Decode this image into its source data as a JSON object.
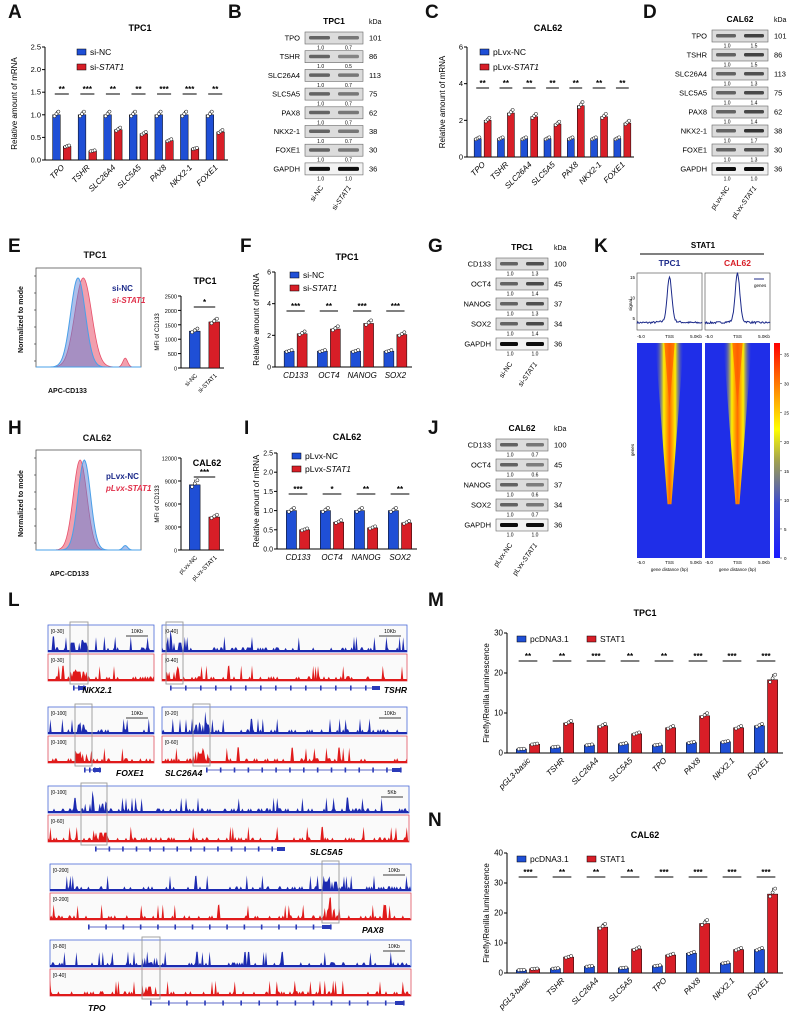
{
  "panels": {
    "A": "A",
    "B": "B",
    "C": "C",
    "D": "D",
    "E": "E",
    "F": "F",
    "G": "G",
    "H": "H",
    "I": "I",
    "J": "J",
    "K": "K",
    "L": "L",
    "M": "M",
    "N": "N"
  },
  "colors": {
    "blue": "#1f4fd6",
    "red": "#d81e27",
    "navy": "#1c2a8a"
  },
  "blots": {
    "B": {
      "title": "TPC1",
      "kda_label": "kDa",
      "lanes": [
        "si-NC",
        "si-STAT1"
      ],
      "rows": [
        {
          "name": "TPO",
          "kda": "101",
          "q": [
            "1.0",
            "0.7"
          ]
        },
        {
          "name": "TSHR",
          "kda": "86",
          "q": [
            "1.0",
            "0.5"
          ]
        },
        {
          "name": "SLC26A4",
          "kda": "113",
          "q": [
            "1.0",
            "0.7"
          ]
        },
        {
          "name": "SLC5A5",
          "kda": "75",
          "q": [
            "1.0",
            "0.7"
          ]
        },
        {
          "name": "PAX8",
          "kda": "62",
          "q": [
            "1.0",
            "0.7"
          ]
        },
        {
          "name": "NKX2-1",
          "kda": "38",
          "q": [
            "1.0",
            "0.7"
          ]
        },
        {
          "name": "FOXE1",
          "kda": "30",
          "q": [
            "1.0",
            "0.7"
          ]
        },
        {
          "name": "GAPDH",
          "kda": "36",
          "q": [
            "1.0",
            "1.0"
          ]
        }
      ]
    },
    "D": {
      "title": "CAL62",
      "kda_label": "kDa",
      "lanes": [
        "pLvx-NC",
        "pLvx-STAT1"
      ],
      "rows": [
        {
          "name": "TPO",
          "kda": "101",
          "q": [
            "1.0",
            "1.5"
          ]
        },
        {
          "name": "TSHR",
          "kda": "86",
          "q": [
            "1.0",
            "1.5"
          ]
        },
        {
          "name": "SLC26A4",
          "kda": "113",
          "q": [
            "1.0",
            "1.3"
          ]
        },
        {
          "name": "SLC5A5",
          "kda": "75",
          "q": [
            "1.0",
            "1.4"
          ]
        },
        {
          "name": "PAX8",
          "kda": "62",
          "q": [
            "1.0",
            "1.4"
          ]
        },
        {
          "name": "NKX2-1",
          "kda": "38",
          "q": [
            "1.0",
            "1.7"
          ]
        },
        {
          "name": "FOXE1",
          "kda": "30",
          "q": [
            "1.0",
            "1.3"
          ]
        },
        {
          "name": "GAPDH",
          "kda": "36",
          "q": [
            "1.0",
            "1.0"
          ]
        }
      ]
    },
    "G": {
      "title": "TPC1",
      "kda_label": "kDa",
      "lanes": [
        "si-NC",
        "si-STAT1"
      ],
      "rows": [
        {
          "name": "CD133",
          "kda": "100",
          "q": [
            "1.0",
            "1.3"
          ]
        },
        {
          "name": "OCT4",
          "kda": "45",
          "q": [
            "1.0",
            "1.4"
          ]
        },
        {
          "name": "NANOG",
          "kda": "37",
          "q": [
            "1.0",
            "1.3"
          ]
        },
        {
          "name": "SOX2",
          "kda": "34",
          "q": [
            "1.0",
            "1.4"
          ]
        },
        {
          "name": "GAPDH",
          "kda": "36",
          "q": [
            "1.0",
            "1.0"
          ]
        }
      ]
    },
    "J": {
      "title": "CAL62",
      "kda_label": "kDa",
      "lanes": [
        "pLvx-NC",
        "pLvx-STAT1"
      ],
      "rows": [
        {
          "name": "CD133",
          "kda": "100",
          "q": [
            "1.0",
            "0.7"
          ]
        },
        {
          "name": "OCT4",
          "kda": "45",
          "q": [
            "1.0",
            "0.6"
          ]
        },
        {
          "name": "NANOG",
          "kda": "37",
          "q": [
            "1.0",
            "0.6"
          ]
        },
        {
          "name": "SOX2",
          "kda": "34",
          "q": [
            "1.0",
            "0.7"
          ]
        },
        {
          "name": "GAPDH",
          "kda": "36",
          "q": [
            "1.0",
            "1.0"
          ]
        }
      ]
    }
  },
  "flow": {
    "E": {
      "title": "TPC1",
      "ylabel": "Normalized to mode",
      "xlabel": "APC-CD133",
      "legend": [
        "si-NC",
        "si-STAT1"
      ]
    },
    "H": {
      "title": "CAL62",
      "ylabel": "Normalized to mode",
      "xlabel": "APC-CD133",
      "legend": [
        "pLvx-NC",
        "pLvx-STAT1"
      ]
    }
  },
  "chart_data": [
    {
      "id": "A",
      "type": "bar",
      "title": "TPC1",
      "ylabel": "Relative amount of mRNA",
      "xlabel": "",
      "ylim": [
        0,
        2.5
      ],
      "yticks": [
        "0.0",
        "0.5",
        "1.0",
        "1.5",
        "2.0",
        "2.5"
      ],
      "categories": [
        "TPO",
        "TSHR",
        "SLC26A4",
        "SLC5A5",
        "PAX8",
        "NKX2-1",
        "FOXE1"
      ],
      "series": [
        {
          "name": "si-NC",
          "values": [
            1.0,
            1.0,
            1.0,
            1.0,
            1.0,
            1.0,
            1.0
          ]
        },
        {
          "name": "si-STAT1",
          "values": [
            0.3,
            0.2,
            0.67,
            0.58,
            0.43,
            0.25,
            0.62
          ]
        }
      ],
      "significance": [
        "**",
        "***",
        "**",
        "**",
        "***",
        "***",
        "**"
      ],
      "legend": "top-left"
    },
    {
      "id": "C",
      "type": "bar",
      "title": "CAL62",
      "ylabel": "Relative amount of mRNA",
      "xlabel": "",
      "ylim": [
        0,
        6
      ],
      "yticks": [
        "0",
        "2",
        "4",
        "6"
      ],
      "categories": [
        "TPO",
        "TSHR",
        "SLC26A4",
        "SLC5A5",
        "PAX8",
        "NKX2-1",
        "FOXE1"
      ],
      "series": [
        {
          "name": "pLvx-NC",
          "values": [
            1.0,
            1.0,
            1.0,
            1.0,
            1.0,
            1.0,
            1.0
          ]
        },
        {
          "name": "pLvx-STAT1",
          "values": [
            2.0,
            2.4,
            2.2,
            1.8,
            2.8,
            2.2,
            1.85
          ]
        }
      ],
      "significance": [
        "**",
        "**",
        "**",
        "**",
        "**",
        "**",
        "**"
      ],
      "legend": "top-left"
    },
    {
      "id": "E2",
      "type": "bar",
      "title": "TPC1",
      "ylabel": "MFI of CD133",
      "xlabel": "",
      "ylim": [
        0,
        2500
      ],
      "yticks": [
        "0",
        "500",
        "1000",
        "1500",
        "2000",
        "2500"
      ],
      "categories": [
        "si-NC",
        "si-STAT1"
      ],
      "values": [
        1280,
        1600
      ],
      "significance": [
        "*"
      ]
    },
    {
      "id": "F",
      "type": "bar",
      "title": "TPC1",
      "ylabel": "Relative amount of mRNA",
      "xlabel": "",
      "ylim": [
        0,
        6
      ],
      "yticks": [
        "0",
        "2",
        "4",
        "6"
      ],
      "categories": [
        "CD133",
        "OCT4",
        "NANOG",
        "SOX2"
      ],
      "series": [
        {
          "name": "si-NC",
          "values": [
            1.0,
            1.0,
            1.0,
            1.0
          ]
        },
        {
          "name": "si-STAT1",
          "values": [
            2.1,
            2.4,
            2.75,
            2.05
          ]
        }
      ],
      "significance": [
        "***",
        "**",
        "***",
        "***"
      ],
      "legend": "top-left"
    },
    {
      "id": "H2",
      "type": "bar",
      "title": "CAL62",
      "ylabel": "MFI of CD133",
      "xlabel": "",
      "ylim": [
        0,
        12000
      ],
      "yticks": [
        "0",
        "3000",
        "6000",
        "9000",
        "12000"
      ],
      "categories": [
        "pLvx-NC",
        "pLvx-STAT1"
      ],
      "values": [
        8500,
        4300
      ],
      "significance": [
        "***"
      ]
    },
    {
      "id": "I",
      "type": "bar",
      "title": "CAL62",
      "ylabel": "Relative amount of mRNA",
      "xlabel": "",
      "ylim": [
        0,
        2.5
      ],
      "yticks": [
        "0.0",
        "0.5",
        "1.0",
        "1.5",
        "2.0",
        "2.5"
      ],
      "categories": [
        "CD133",
        "OCT4",
        "NANOG",
        "SOX2"
      ],
      "series": [
        {
          "name": "pLvx-NC",
          "values": [
            1.0,
            1.0,
            1.0,
            1.0
          ]
        },
        {
          "name": "pLvx-STAT1",
          "values": [
            0.5,
            0.7,
            0.55,
            0.68
          ]
        }
      ],
      "significance": [
        "***",
        "*",
        "**",
        "**"
      ],
      "legend": "top-left"
    },
    {
      "id": "M",
      "type": "bar",
      "title": "TPC1",
      "ylabel": "Firefly/Renilla luminescence",
      "xlabel": "",
      "ylim": [
        0,
        30
      ],
      "yticks": [
        "0",
        "10",
        "20",
        "30"
      ],
      "categories": [
        "pGL3-basic",
        "TSHR",
        "SLC26A4",
        "SLC5A5",
        "TPO",
        "PAX8",
        "NKX2.1",
        "FOXE1"
      ],
      "series": [
        {
          "name": "pcDNA3.1",
          "values": [
            1.0,
            1.5,
            2.0,
            2.3,
            2.0,
            2.6,
            2.8,
            6.8
          ]
        },
        {
          "name": "STAT1",
          "values": [
            2.2,
            7.5,
            6.8,
            4.8,
            6.3,
            9.3,
            6.3,
            18.3
          ]
        }
      ],
      "significance": [
        "**",
        "**",
        "***",
        "**",
        "**",
        "***",
        "***",
        "***"
      ],
      "legend": "top"
    },
    {
      "id": "N",
      "type": "bar",
      "title": "CAL62",
      "ylabel": "Firefly/Renilla luminescence",
      "xlabel": "",
      "ylim": [
        0,
        40
      ],
      "yticks": [
        "0",
        "10",
        "20",
        "30",
        "40"
      ],
      "categories": [
        "pGL3-basic",
        "TSHR",
        "SLC26A4",
        "SLC5A5",
        "TPO",
        "PAX8",
        "NKX2.1",
        "FOXE1"
      ],
      "series": [
        {
          "name": "pcDNA3.1",
          "values": [
            1.0,
            1.5,
            2.2,
            1.7,
            2.4,
            6.6,
            3.3,
            7.8
          ]
        },
        {
          "name": "STAT1",
          "values": [
            1.4,
            5.3,
            15.3,
            8.0,
            6.0,
            16.5,
            7.8,
            26.3
          ]
        }
      ],
      "significance": [
        "***",
        "**",
        "**",
        "**",
        "***",
        "***",
        "***",
        "***"
      ],
      "legend": "top"
    },
    {
      "id": "K",
      "type": "heatmap",
      "title": "STAT1",
      "columns": [
        "TPC1",
        "CAL62"
      ],
      "profile_ylabel": "signal",
      "profile_yticks": [
        "5",
        "10",
        "15"
      ],
      "profile_legend": "genes",
      "xticks": [
        "-5.0",
        "TSS",
        "5.0Kb"
      ],
      "xlabel": "gene distance (bp)",
      "ylabel": "genes",
      "colorbar_ticks": [
        "0",
        "5",
        "10",
        "15",
        "20",
        "25",
        "30",
        "35"
      ],
      "colorbar_range": [
        0,
        37
      ],
      "profile_peak": [
        14.5,
        15.5
      ]
    }
  ],
  "tracks": {
    "loci": [
      {
        "gene": "NKX2.1",
        "range_blue": "[0-30]",
        "range_red": "[0-30]",
        "scale": "10Kb"
      },
      {
        "gene": "TSHR",
        "range_blue": "[0-40]",
        "range_red": "[0-40]",
        "scale": "10Kb"
      },
      {
        "gene": "FOXE1",
        "range_blue": "[0-100]",
        "range_red": "[0-100]",
        "scale": "10Kb"
      },
      {
        "gene": "SLC26A4",
        "range_blue": "[0-20]",
        "range_red": "[0-60]",
        "scale": "10Kb"
      },
      {
        "gene": "SLC5A5",
        "range_blue": "[0-100]",
        "range_red": "[0-60]",
        "scale": "5Kb"
      },
      {
        "gene": "PAX8",
        "range_blue": "[0-200]",
        "range_red": "[0-200]",
        "scale": "10Kb"
      },
      {
        "gene": "TPO",
        "range_blue": "[0-80]",
        "range_red": "[0-40]",
        "scale": "10Kb"
      }
    ]
  }
}
